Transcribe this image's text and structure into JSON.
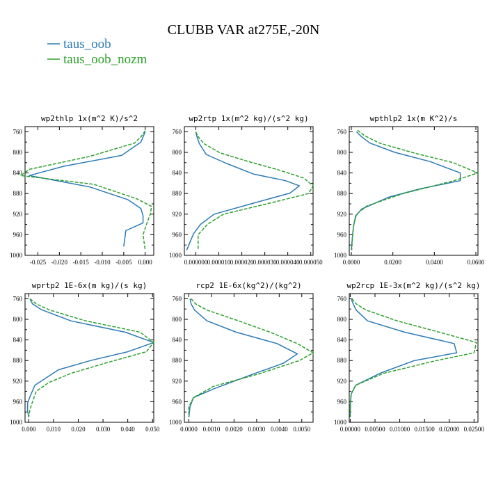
{
  "figure": {
    "title": "CLUBB VAR at275E,-20N",
    "legend": [
      {
        "name": "taus_oob",
        "color": "#2c7bb6"
      },
      {
        "name": "taus_oob_nozm",
        "color": "#2ca02c"
      }
    ]
  },
  "chart_data": [
    {
      "type": "line",
      "title": "wp2thlp  1x(m^2 K)/s^2",
      "xlim": [
        -0.028,
        0.002
      ],
      "xticks": [
        -0.025,
        -0.02,
        -0.015,
        -0.01,
        -0.005,
        0.0
      ],
      "xtick_labels": [
        "-0.025",
        "-0.020",
        "-0.015",
        "-0.010",
        "-0.005",
        "0.000"
      ],
      "ylim": [
        1000,
        750
      ],
      "yticks": [
        760,
        800,
        840,
        880,
        920,
        960,
        1000
      ],
      "series": [
        {
          "name": "taus_oob",
          "x": [
            0.0,
            -0.0005,
            -0.001,
            -0.0055,
            -0.019,
            -0.027,
            -0.013,
            -0.004,
            -0.001,
            -0.0005,
            -0.0005,
            -0.0045,
            -0.005
          ],
          "y": [
            760,
            770,
            780,
            806,
            827,
            845,
            867,
            892,
            909,
            923,
            937,
            952,
            983
          ]
        },
        {
          "name": "taus_oob_nozm",
          "x": [
            0.0,
            -0.001,
            -0.0025,
            -0.013,
            -0.027,
            -0.029,
            -0.012,
            -0.002,
            0.0015,
            0.0012,
            0.0005,
            -0.0005,
            0.0
          ],
          "y": [
            758,
            770,
            782,
            808,
            833,
            845,
            862,
            890,
            905,
            920,
            935,
            960,
            990
          ]
        }
      ]
    },
    {
      "type": "line",
      "title": "wp2rtp  1x(m^2 kg)/(s^2 kg)",
      "xlim": [
        -5e-06,
        5.1e-05
      ],
      "xticks": [
        0.0,
        1e-05,
        2e-05,
        3e-05,
        4e-05,
        5e-05
      ],
      "xtick_labels": [
        "0.000000",
        "0.000010",
        "0.000020",
        "0.000030",
        "0.000040",
        "0.000050"
      ],
      "ylim": [
        1000,
        750
      ],
      "yticks": [
        760,
        800,
        840,
        880,
        920,
        960,
        1000
      ],
      "series": [
        {
          "name": "taus_oob",
          "x": [
            0.0,
            5e-07,
            1.5e-06,
            4.5e-06,
            1.3e-05,
            2.5e-05,
            3.9e-05,
            4.5e-05,
            4.1e-05,
            2.4e-05,
            8e-06,
            2e-06,
            -1e-06,
            -4e-06
          ],
          "y": [
            760,
            770,
            783,
            804,
            821,
            842,
            855,
            865,
            879,
            900,
            920,
            940,
            958,
            990
          ]
        },
        {
          "name": "taus_oob_nozm",
          "x": [
            0.0,
            1e-06,
            3.5e-06,
            1.05e-05,
            2.3e-05,
            3.6e-05,
            4.7e-05,
            5.1e-05,
            4.9e-05,
            3.1e-05,
            1.2e-05,
            5e-06,
            1e-06,
            1e-06
          ],
          "y": [
            760,
            770,
            783,
            801,
            818,
            834,
            850,
            865,
            880,
            900,
            920,
            940,
            960,
            990
          ]
        }
      ]
    },
    {
      "type": "line",
      "title": "wpthlp2  1x(m K^2)/s",
      "xlim": [
        -0.001,
        0.061
      ],
      "xticks": [
        0.0,
        0.02,
        0.04,
        0.06
      ],
      "xtick_labels": [
        "0.0000",
        "0.0200",
        "0.0400",
        "0.0600"
      ],
      "ylim": [
        1000,
        750
      ],
      "yticks": [
        760,
        800,
        840,
        880,
        920,
        960,
        1000
      ],
      "series": [
        {
          "name": "taus_oob",
          "x": [
            0.0025,
            0.005,
            0.009,
            0.021,
            0.038,
            0.0525,
            0.0525,
            0.033,
            0.018,
            0.005,
            0.002,
            0.001,
            0.0005,
            0.0
          ],
          "y": [
            760,
            770,
            782,
            800,
            818,
            840,
            855,
            871,
            887,
            910,
            924,
            945,
            965,
            990
          ]
        },
        {
          "name": "taus_oob_nozm",
          "x": [
            0.003,
            0.0065,
            0.0135,
            0.031,
            0.049,
            0.061,
            0.0495,
            0.025,
            0.0075,
            0.0025,
            0.0012,
            0.0006,
            0.0002
          ],
          "y": [
            757,
            768,
            782,
            802,
            820,
            840,
            855,
            880,
            904,
            920,
            940,
            960,
            990
          ]
        }
      ]
    },
    {
      "type": "line",
      "title": "wprtp2  1E-6x(m kg)/(s kg)",
      "xlim": [
        -0.0015,
        0.0505
      ],
      "xticks": [
        0.0,
        0.01,
        0.02,
        0.03,
        0.04,
        0.05
      ],
      "xtick_labels": [
        "0.000",
        "0.010",
        "0.020",
        "0.030",
        "0.040",
        "0.050"
      ],
      "ylim": [
        1000,
        750
      ],
      "yticks": [
        760,
        800,
        840,
        880,
        920,
        960,
        1000
      ],
      "series": [
        {
          "name": "taus_oob",
          "x": [
            0.0005,
            0.0015,
            0.005,
            0.017,
            0.039,
            0.0505,
            0.04,
            0.025,
            0.012,
            0.0025,
            0.0005,
            -0.0005,
            -0.0005,
            0.0
          ],
          "y": [
            760,
            770,
            781,
            803,
            825,
            845,
            863,
            880,
            898,
            928,
            950,
            963,
            978,
            990
          ]
        },
        {
          "name": "taus_oob_nozm",
          "x": [
            0.0005,
            0.003,
            0.0085,
            0.023,
            0.045,
            0.0505,
            0.0475,
            0.031,
            0.017,
            0.008,
            0.003,
            0.0015,
            0.0005,
            0.0
          ],
          "y": [
            760,
            770,
            782,
            803,
            825,
            845,
            863,
            885,
            905,
            923,
            940,
            960,
            975,
            990
          ]
        }
      ]
    },
    {
      "type": "line",
      "title": "rcp2  1E-6x(kg^2)/(kg^2)",
      "xlim": [
        -0.0002,
        0.0055
      ],
      "xticks": [
        0.0,
        0.001,
        0.002,
        0.003,
        0.004,
        0.005
      ],
      "xtick_labels": [
        "0.0000",
        "0.0010",
        "0.0020",
        "0.0030",
        "0.0040",
        "0.0050"
      ],
      "ylim": [
        1000,
        750
      ],
      "yticks": [
        760,
        800,
        840,
        880,
        920,
        960,
        1000
      ],
      "series": [
        {
          "name": "taus_oob",
          "x": [
            5e-05,
            0.0001,
            0.00025,
            0.0008,
            0.0021,
            0.0039,
            0.0048,
            0.0042,
            0.0028,
            0.0011,
            0.0002,
            5e-05,
            0.0
          ],
          "y": [
            760,
            770,
            782,
            803,
            825,
            847,
            867,
            885,
            907,
            935,
            952,
            970,
            990
          ]
        },
        {
          "name": "taus_oob_nozm",
          "x": [
            0.0001,
            0.0003,
            0.0008,
            0.0022,
            0.0036,
            0.0048,
            0.0055,
            0.0049,
            0.0031,
            0.0011,
            0.0002,
            0.0,
            0.0
          ],
          "y": [
            760,
            770,
            782,
            803,
            825,
            847,
            865,
            880,
            906,
            930,
            952,
            970,
            990
          ]
        }
      ]
    },
    {
      "type": "line",
      "title": "wp2rcp  1E-3x(m^2 kg)/(s^2 kg)",
      "xlim": [
        -0.0002,
        0.0258
      ],
      "xticks": [
        0.0,
        0.005,
        0.01,
        0.015,
        0.02,
        0.025
      ],
      "xtick_labels": [
        "0.00000",
        "0.00500",
        "0.01000",
        "0.01500",
        "0.02000",
        "0.02500"
      ],
      "ylim": [
        1000,
        750
      ],
      "yticks": [
        760,
        800,
        840,
        880,
        920,
        960,
        1000
      ],
      "series": [
        {
          "name": "taus_oob",
          "x": [
            0.0002,
            0.0006,
            0.0012,
            0.0035,
            0.011,
            0.021,
            0.0215,
            0.013,
            0.0062,
            0.0011,
            0.0002,
            5e-05,
            0.0
          ],
          "y": [
            760,
            770,
            782,
            803,
            825,
            847,
            865,
            880,
            904,
            928,
            945,
            965,
            990
          ]
        },
        {
          "name": "taus_oob_nozm",
          "x": [
            0.0003,
            0.0012,
            0.0032,
            0.0095,
            0.018,
            0.0255,
            0.025,
            0.017,
            0.0067,
            0.0011,
            0.0002,
            0.0,
            0.0
          ],
          "y": [
            760,
            770,
            782,
            803,
            825,
            845,
            865,
            881,
            905,
            928,
            945,
            965,
            990
          ]
        }
      ]
    }
  ]
}
